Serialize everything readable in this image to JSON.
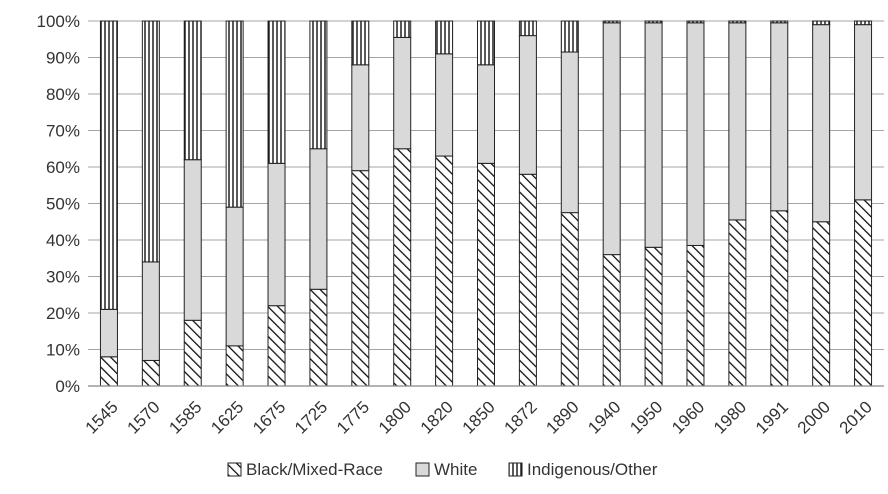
{
  "chart_data": {
    "type": "bar",
    "stacked": true,
    "categories": [
      "1545",
      "1570",
      "1585",
      "1625",
      "1675",
      "1725",
      "1775",
      "1800",
      "1820",
      "1850",
      "1872",
      "1890",
      "1940",
      "1950",
      "1960",
      "1980",
      "1991",
      "2000",
      "2010"
    ],
    "series": [
      {
        "name": "Black/Mixed-Race",
        "pattern": "diagonal-hatch",
        "color": "#ffffff",
        "values": [
          8,
          7,
          18,
          11,
          22,
          26.5,
          59,
          65,
          63,
          61,
          58,
          47.5,
          36,
          38,
          38.5,
          45.5,
          48,
          45,
          51
        ]
      },
      {
        "name": "White",
        "pattern": "solid",
        "color": "#d9d9d9",
        "values": [
          13,
          27,
          44,
          38,
          39,
          38.5,
          29,
          30.5,
          28,
          27,
          38,
          44,
          63.5,
          61.5,
          61,
          54,
          51.5,
          54,
          48
        ]
      },
      {
        "name": "Indigenous/Other",
        "pattern": "vertical-stripes",
        "color": "#ffffff",
        "values": [
          79,
          66,
          38,
          51,
          39,
          35,
          12,
          4.5,
          9,
          12,
          4,
          8.5,
          0.5,
          0.5,
          0.5,
          0.5,
          0.5,
          1,
          1
        ]
      }
    ],
    "yticks": [
      "0%",
      "10%",
      "20%",
      "30%",
      "40%",
      "50%",
      "60%",
      "70%",
      "80%",
      "90%",
      "100%"
    ],
    "ylim": [
      0,
      100
    ],
    "title": "",
    "xlabel": "",
    "ylabel": "",
    "grid": "horizontal",
    "legend": "bottom"
  }
}
